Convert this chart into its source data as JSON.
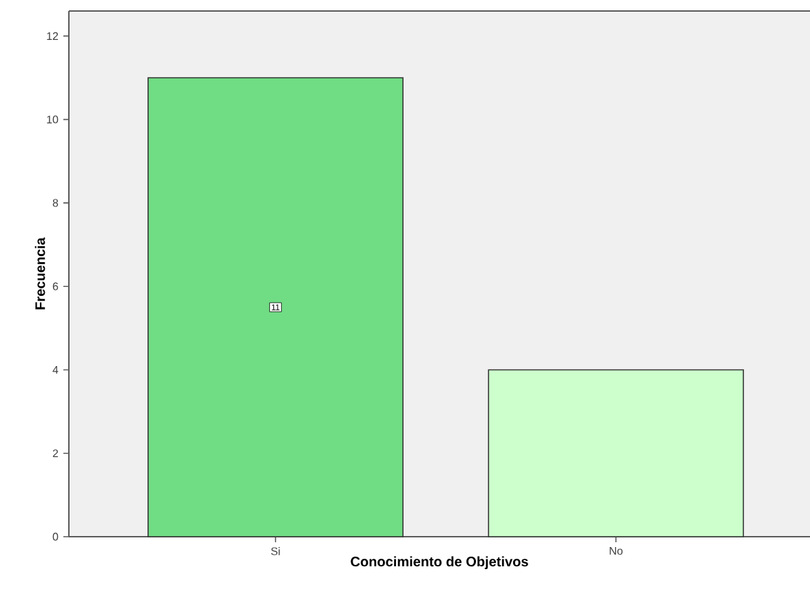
{
  "chart_data": {
    "type": "bar",
    "xlabel": "Conocimiento de Objetivos",
    "ylabel": "Frecuencia",
    "categories": [
      "Si",
      "No"
    ],
    "values": [
      11,
      4
    ],
    "colors": [
      "#70dc84",
      "#ccffcc"
    ],
    "value_labels": [
      "11",
      null
    ],
    "ylim": [
      0,
      12.6
    ],
    "yticks": [
      0,
      2,
      4,
      6,
      8,
      10,
      12
    ],
    "grid": false
  }
}
